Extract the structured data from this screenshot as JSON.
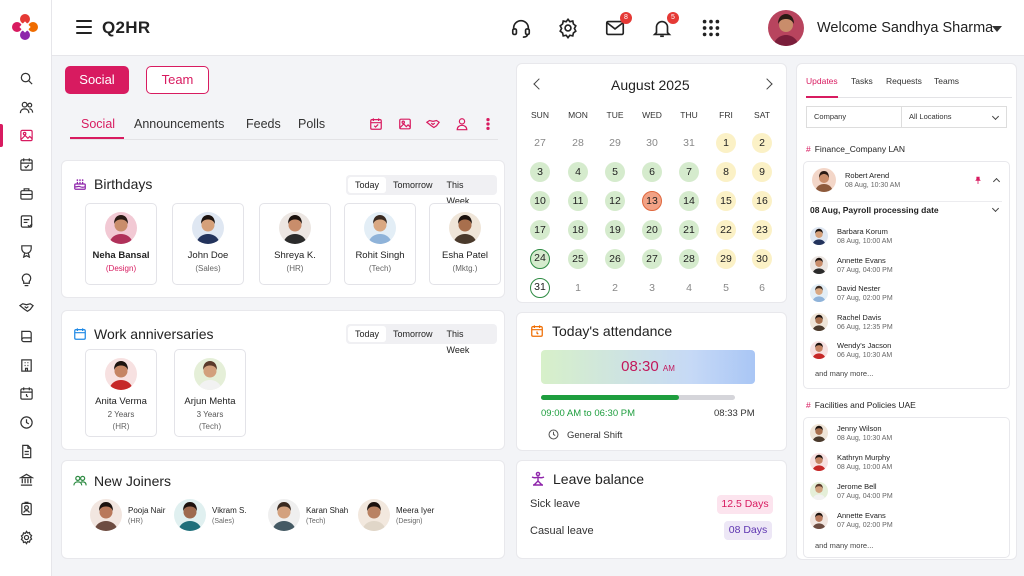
{
  "app": {
    "brand": "Q2HR",
    "welcome": "Welcome Sandhya Sharma",
    "mail_badge": "8",
    "bell_badge": "5"
  },
  "colors": {
    "accent": "#d81b60",
    "green_day": "#d5ebcd",
    "yellow_day": "#fbf1c6",
    "today": "#f2a285",
    "progress": "#1e9e3e"
  },
  "sidebar": {
    "icons": [
      "search-icon",
      "people-icon",
      "gallery-icon",
      "calendar-check-icon",
      "briefcase-icon",
      "task-icon",
      "award-icon",
      "lightbulb-icon",
      "handshake-icon",
      "book-icon",
      "building-icon",
      "calendar-clock-icon",
      "clock-icon",
      "document-icon",
      "bank-icon",
      "id-badge-icon",
      "settings-icon"
    ],
    "active_index": 2
  },
  "social": {
    "buttons": {
      "social": "Social",
      "team": "Team"
    },
    "tabs": [
      "Social",
      "Announcements",
      "Feeds",
      "Polls"
    ],
    "active_tab": "Social"
  },
  "birthdays": {
    "title": "Birthdays",
    "filters": [
      "Today",
      "Tomorrow",
      "This Week"
    ],
    "people": [
      {
        "name": "Neha Bansal",
        "role": "(Design)"
      },
      {
        "name": "John Doe",
        "role": "(Sales)"
      },
      {
        "name": "Shreya K.",
        "role": "(HR)"
      },
      {
        "name": "Rohit Singh",
        "role": "(Tech)"
      },
      {
        "name": "Esha Patel",
        "role": "(Mktg.)"
      }
    ]
  },
  "anniversaries": {
    "title": "Work anniversaries",
    "filters": [
      "Today",
      "Tomorrow",
      "This Week"
    ],
    "people": [
      {
        "name": "Anita Verma",
        "years": "2 Years",
        "role": "(HR)"
      },
      {
        "name": "Arjun Mehta",
        "years": "3 Years",
        "role": "(Tech)"
      }
    ]
  },
  "joiners": {
    "title": "New Joiners",
    "people": [
      {
        "name": "Pooja Nair",
        "role": "(HR)"
      },
      {
        "name": "Vikram S.",
        "role": "(Sales)"
      },
      {
        "name": "Karan Shah",
        "role": "(Tech)"
      },
      {
        "name": "Meera Iyer",
        "role": "(Design)"
      }
    ]
  },
  "calendar": {
    "title": "August 2025",
    "dow": [
      "SUN",
      "MON",
      "TUE",
      "WED",
      "THU",
      "FRI",
      "SAT"
    ],
    "weeks": [
      [
        [
          "27",
          "muted"
        ],
        [
          "28",
          "muted"
        ],
        [
          "29",
          "muted"
        ],
        [
          "30",
          "muted"
        ],
        [
          "31",
          "muted"
        ],
        [
          "1",
          "yellow"
        ],
        [
          "2",
          "yellow"
        ]
      ],
      [
        [
          "3",
          "green"
        ],
        [
          "4",
          "green"
        ],
        [
          "5",
          "green"
        ],
        [
          "6",
          "green"
        ],
        [
          "7",
          "green"
        ],
        [
          "8",
          "yellow"
        ],
        [
          "9",
          "yellow"
        ]
      ],
      [
        [
          "10",
          "green"
        ],
        [
          "11",
          "green"
        ],
        [
          "12",
          "green"
        ],
        [
          "13",
          "today"
        ],
        [
          "14",
          "green"
        ],
        [
          "15",
          "yellow"
        ],
        [
          "16",
          "yellow"
        ]
      ],
      [
        [
          "17",
          "green"
        ],
        [
          "18",
          "green"
        ],
        [
          "19",
          "green"
        ],
        [
          "20",
          "green"
        ],
        [
          "21",
          "green"
        ],
        [
          "22",
          "yellow"
        ],
        [
          "23",
          "yellow"
        ]
      ],
      [
        [
          "24",
          "ring-green"
        ],
        [
          "25",
          "green"
        ],
        [
          "26",
          "green"
        ],
        [
          "27",
          "green"
        ],
        [
          "28",
          "green"
        ],
        [
          "29",
          "yellow"
        ],
        [
          "30",
          "yellow"
        ]
      ],
      [
        [
          "31",
          "ring"
        ],
        [
          "1",
          "muted"
        ],
        [
          "2",
          "muted"
        ],
        [
          "3",
          "muted"
        ],
        [
          "4",
          "muted"
        ],
        [
          "5",
          "muted"
        ],
        [
          "6",
          "muted"
        ]
      ]
    ]
  },
  "attendance": {
    "title": "Today's attendance",
    "time": "08:30",
    "ampm": "AM",
    "range": "09:00 AM to 06:30 PM",
    "end": "08:33 PM",
    "progress": 0.71,
    "shift": "General Shift"
  },
  "leave": {
    "title": "Leave balance",
    "rows": [
      {
        "label": "Sick leave",
        "value": "12.5 Days"
      },
      {
        "label": "Casual leave",
        "value": "08 Days"
      }
    ]
  },
  "updates": {
    "tabs": [
      "Updates",
      "Tasks",
      "Requests",
      "Teams"
    ],
    "company_select": "Company",
    "location_select": "All Locations",
    "group1": {
      "channel": "Finance_Company LAN",
      "author": "Robert Arend",
      "author_date": "08 Aug, 10:30 AM",
      "subject": "08 Aug, Payroll processing date",
      "people": [
        {
          "name": "Barbara Korum",
          "date": "08 Aug, 10:00 AM"
        },
        {
          "name": "Annette Evans",
          "date": "07 Aug, 04:00 PM"
        },
        {
          "name": "David Nester",
          "date": "07 Aug, 02:00 PM"
        },
        {
          "name": "Rachel Davis",
          "date": "06 Aug, 12:35 PM"
        },
        {
          "name": "Wendy's Jacson",
          "date": "06 Aug, 10:30 AM"
        }
      ],
      "more": "and many more..."
    },
    "group2": {
      "channel": "Facilities and Policies UAE",
      "people": [
        {
          "name": "Jenny Wilson",
          "date": "08 Aug, 10:30 AM"
        },
        {
          "name": "Kathryn Murphy",
          "date": "08 Aug, 10:00 AM"
        },
        {
          "name": "Jerome Bell",
          "date": "07 Aug, 04:00 PM"
        },
        {
          "name": "Annette Evans",
          "date": "07 Aug, 02:00 PM"
        }
      ],
      "more": "and many more..."
    }
  }
}
